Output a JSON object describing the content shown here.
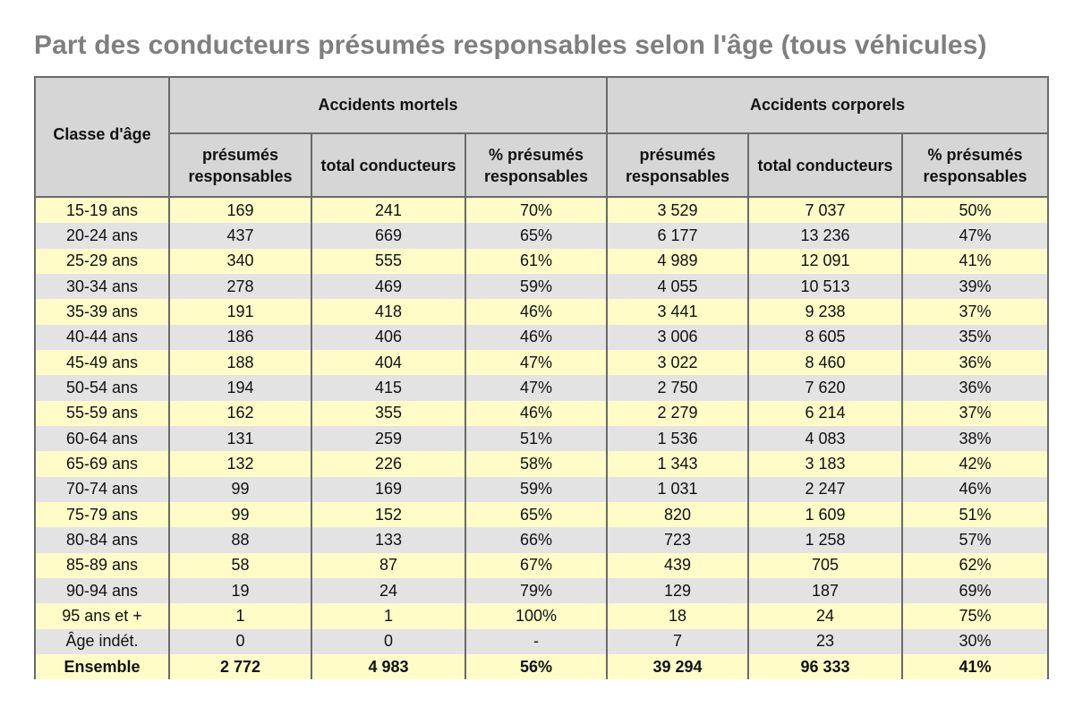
{
  "title": "Part des conducteurs présumés responsables selon l'âge (tous véhicules)",
  "table": {
    "age_header": "Classe d'âge",
    "groups": [
      "Accidents mortels",
      "Accidents corporels"
    ],
    "subheaders": [
      [
        "présumés",
        "responsables"
      ],
      [
        "total conducteurs"
      ],
      [
        "% présumés",
        "responsables"
      ],
      [
        "présumés",
        "responsables"
      ],
      [
        "total conducteurs"
      ],
      [
        "% présumés",
        "responsables"
      ]
    ],
    "rows": [
      [
        "15-19 ans",
        "169",
        "241",
        "70%",
        "3 529",
        "7 037",
        "50%"
      ],
      [
        "20-24 ans",
        "437",
        "669",
        "65%",
        "6 177",
        "13 236",
        "47%"
      ],
      [
        "25-29 ans",
        "340",
        "555",
        "61%",
        "4 989",
        "12 091",
        "41%"
      ],
      [
        "30-34 ans",
        "278",
        "469",
        "59%",
        "4 055",
        "10 513",
        "39%"
      ],
      [
        "35-39 ans",
        "191",
        "418",
        "46%",
        "3 441",
        "9 238",
        "37%"
      ],
      [
        "40-44 ans",
        "186",
        "406",
        "46%",
        "3 006",
        "8 605",
        "35%"
      ],
      [
        "45-49 ans",
        "188",
        "404",
        "47%",
        "3 022",
        "8 460",
        "36%"
      ],
      [
        "50-54 ans",
        "194",
        "415",
        "47%",
        "2 750",
        "7 620",
        "36%"
      ],
      [
        "55-59 ans",
        "162",
        "355",
        "46%",
        "2 279",
        "6 214",
        "37%"
      ],
      [
        "60-64 ans",
        "131",
        "259",
        "51%",
        "1 536",
        "4 083",
        "38%"
      ],
      [
        "65-69 ans",
        "132",
        "226",
        "58%",
        "1 343",
        "3 183",
        "42%"
      ],
      [
        "70-74 ans",
        "99",
        "169",
        "59%",
        "1 031",
        "2 247",
        "46%"
      ],
      [
        "75-79 ans",
        "99",
        "152",
        "65%",
        "820",
        "1 609",
        "51%"
      ],
      [
        "80-84 ans",
        "88",
        "133",
        "66%",
        "723",
        "1 258",
        "57%"
      ],
      [
        "85-89 ans",
        "58",
        "87",
        "67%",
        "439",
        "705",
        "62%"
      ],
      [
        "90-94 ans",
        "19",
        "24",
        "79%",
        "129",
        "187",
        "69%"
      ],
      [
        "95 ans et +",
        "1",
        "1",
        "100%",
        "18",
        "24",
        "75%"
      ],
      [
        "Âge indét.",
        "0",
        "0",
        "-",
        "7",
        "23",
        "30%"
      ]
    ],
    "total": [
      "Ensemble",
      "2 772",
      "4 983",
      "56%",
      "39 294",
      "96 333",
      "41%"
    ]
  }
}
